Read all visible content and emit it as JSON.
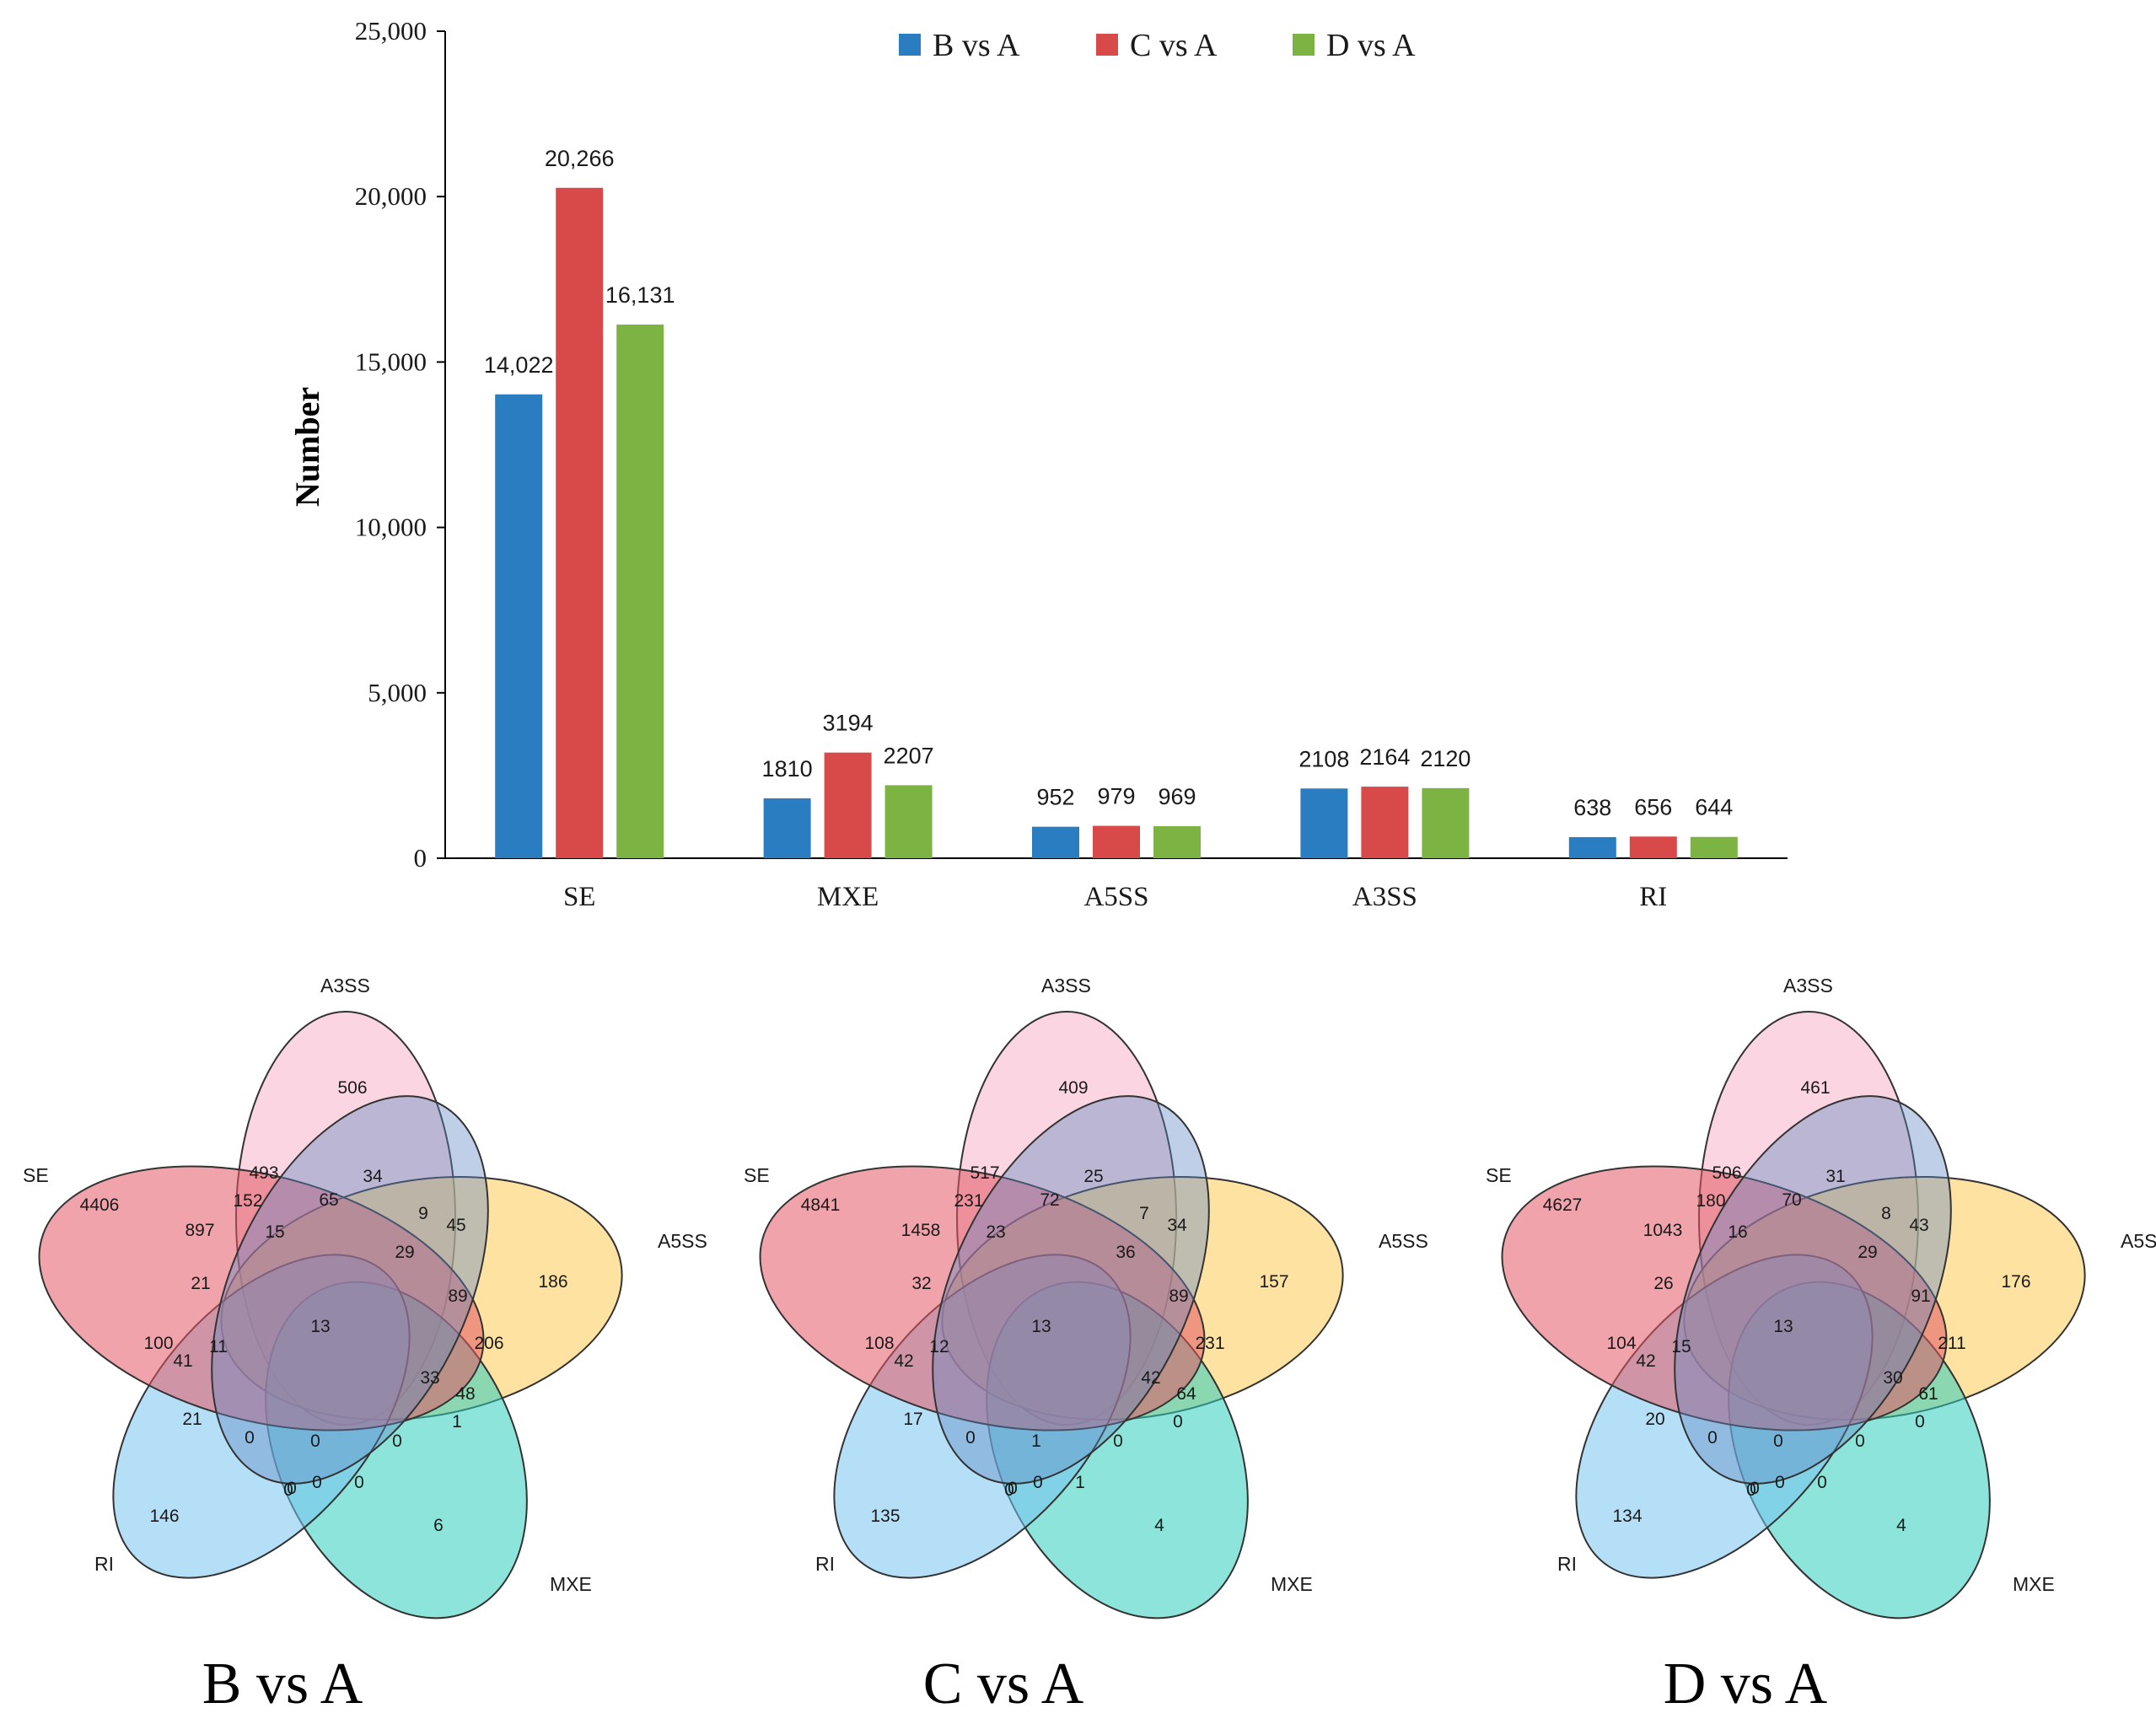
{
  "chart_data": [
    {
      "type": "bar",
      "title": "",
      "xlabel": "",
      "ylabel": "Number",
      "ylim": [
        0,
        25000
      ],
      "yticks": [
        0,
        5000,
        10000,
        15000,
        20000,
        25000
      ],
      "ytick_labels": [
        "0",
        "5,000",
        "10,000",
        "15,000",
        "20,000",
        "25,000"
      ],
      "categories": [
        "SE",
        "MXE",
        "A5SS",
        "A3SS",
        "RI"
      ],
      "legend_position": "top",
      "grid": false,
      "series": [
        {
          "name": "B vs A",
          "color": "#2a7dc0",
          "values": [
            14022,
            1810,
            952,
            2108,
            638
          ],
          "labels": [
            "14,022",
            "1810",
            "952",
            "2108",
            "638"
          ]
        },
        {
          "name": "C vs A",
          "color": "#d84a4a",
          "values": [
            20266,
            3194,
            979,
            2164,
            656
          ],
          "labels": [
            "20,266",
            "3194",
            "979",
            "2164",
            "656"
          ]
        },
        {
          "name": "D vs A",
          "color": "#7cb342",
          "values": [
            16131,
            2207,
            969,
            2120,
            644
          ],
          "labels": [
            "16,131",
            "2207",
            "969",
            "2120",
            "644"
          ]
        }
      ]
    },
    {
      "type": "venn",
      "title": "B vs A",
      "sets": [
        "A3SS",
        "A5SS",
        "MXE",
        "RI",
        "SE"
      ],
      "regions": {
        "a3ss_only": "506",
        "a5ss_only": "186",
        "mxe_only": "6",
        "ri_only": "146",
        "se_only": "4406",
        "se_a3ss_outer": "493",
        "a3ss_blue_top": "34",
        "a3ss_a5ss_outer": "45",
        "a5ss_mxe_outer": "1",
        "ri_mxe_outer": "0",
        "se_ri_outer": "100",
        "se_upper_1": "897",
        "se_upper_2": "152",
        "se_upper_3": "65",
        "upper_mid_1": "15",
        "upper_mid_2": "9",
        "right_mid_1": "29",
        "right_mid_2": "89",
        "right_mid_3": "206",
        "left_mid_1": "21",
        "left_mid_2": "41",
        "left_mid_3": "11",
        "center": "13",
        "lower_right_1": "33",
        "lower_right_2": "48",
        "lower_left": "21",
        "lower_1": "0",
        "lower_2": "0",
        "lower_3": "0",
        "bottom_1": "0",
        "bottom_2": "0",
        "bottom_3": "0"
      }
    },
    {
      "type": "venn",
      "title": "C vs A",
      "sets": [
        "A3SS",
        "A5SS",
        "MXE",
        "RI",
        "SE"
      ],
      "regions": {
        "a3ss_only": "409",
        "a5ss_only": "157",
        "mxe_only": "4",
        "ri_only": "135",
        "se_only": "4841",
        "se_a3ss_outer": "517",
        "a3ss_blue_top": "25",
        "a3ss_a5ss_outer": "34",
        "a5ss_mxe_outer": "0",
        "ri_mxe_outer": "0",
        "se_ri_outer": "108",
        "se_upper_1": "1458",
        "se_upper_2": "231",
        "se_upper_3": "72",
        "upper_mid_1": "23",
        "upper_mid_2": "7",
        "right_mid_1": "36",
        "right_mid_2": "89",
        "right_mid_3": "231",
        "left_mid_1": "32",
        "left_mid_2": "42",
        "left_mid_3": "12",
        "center": "13",
        "lower_right_1": "42",
        "lower_right_2": "64",
        "lower_left": "17",
        "lower_1": "0",
        "lower_2": "1",
        "lower_3": "0",
        "bottom_1": "0",
        "bottom_2": "0",
        "bottom_3": "1"
      }
    },
    {
      "type": "venn",
      "title": "D vs A",
      "sets": [
        "A3SS",
        "A5SS",
        "MXE",
        "RI",
        "SE"
      ],
      "regions": {
        "a3ss_only": "461",
        "a5ss_only": "176",
        "mxe_only": "4",
        "ri_only": "134",
        "se_only": "4627",
        "se_a3ss_outer": "506",
        "a3ss_blue_top": "31",
        "a3ss_a5ss_outer": "43",
        "a5ss_mxe_outer": "0",
        "ri_mxe_outer": "0",
        "se_ri_outer": "104",
        "se_upper_1": "1043",
        "se_upper_2": "180",
        "se_upper_3": "70",
        "upper_mid_1": "16",
        "upper_mid_2": "8",
        "right_mid_1": "29",
        "right_mid_2": "91",
        "right_mid_3": "211",
        "left_mid_1": "26",
        "left_mid_2": "42",
        "left_mid_3": "15",
        "center": "13",
        "lower_right_1": "30",
        "lower_right_2": "61",
        "lower_left": "20",
        "lower_1": "0",
        "lower_2": "0",
        "lower_3": "0",
        "bottom_1": "0",
        "bottom_2": "0",
        "bottom_3": "0"
      }
    }
  ]
}
